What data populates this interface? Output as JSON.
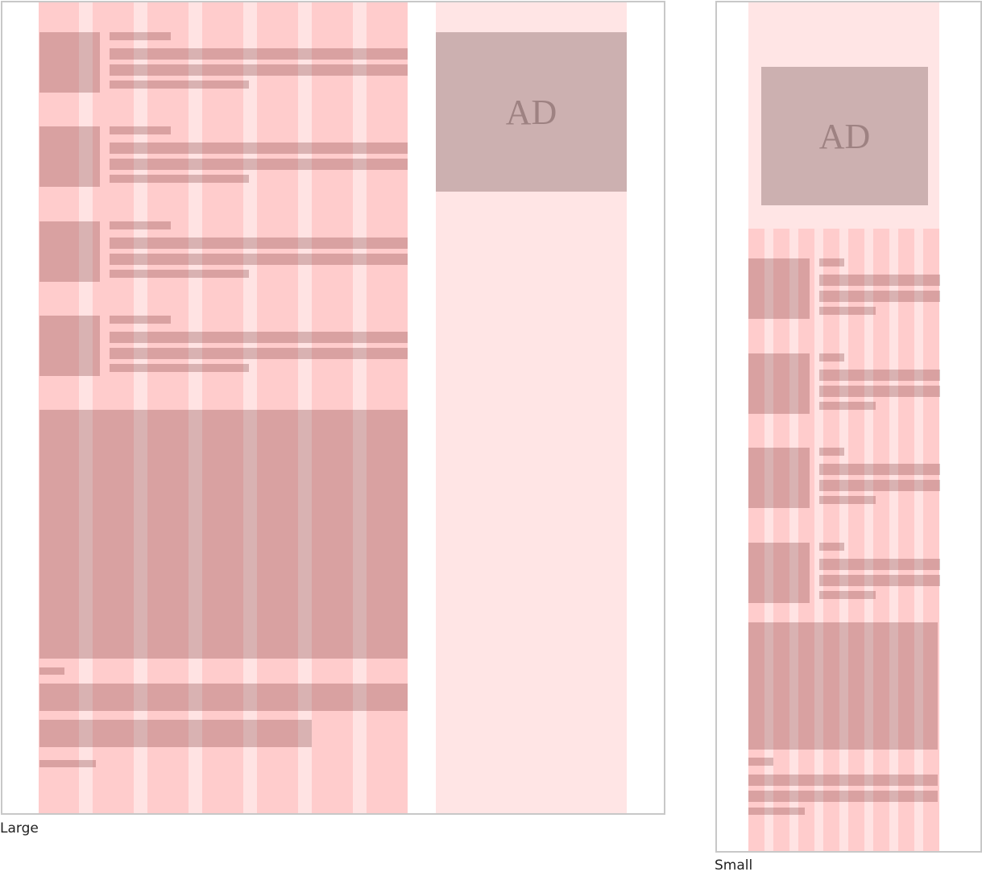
{
  "frames": [
    {
      "label": "Large",
      "ad": "AD"
    },
    {
      "label": "Small",
      "ad": "AD"
    }
  ]
}
